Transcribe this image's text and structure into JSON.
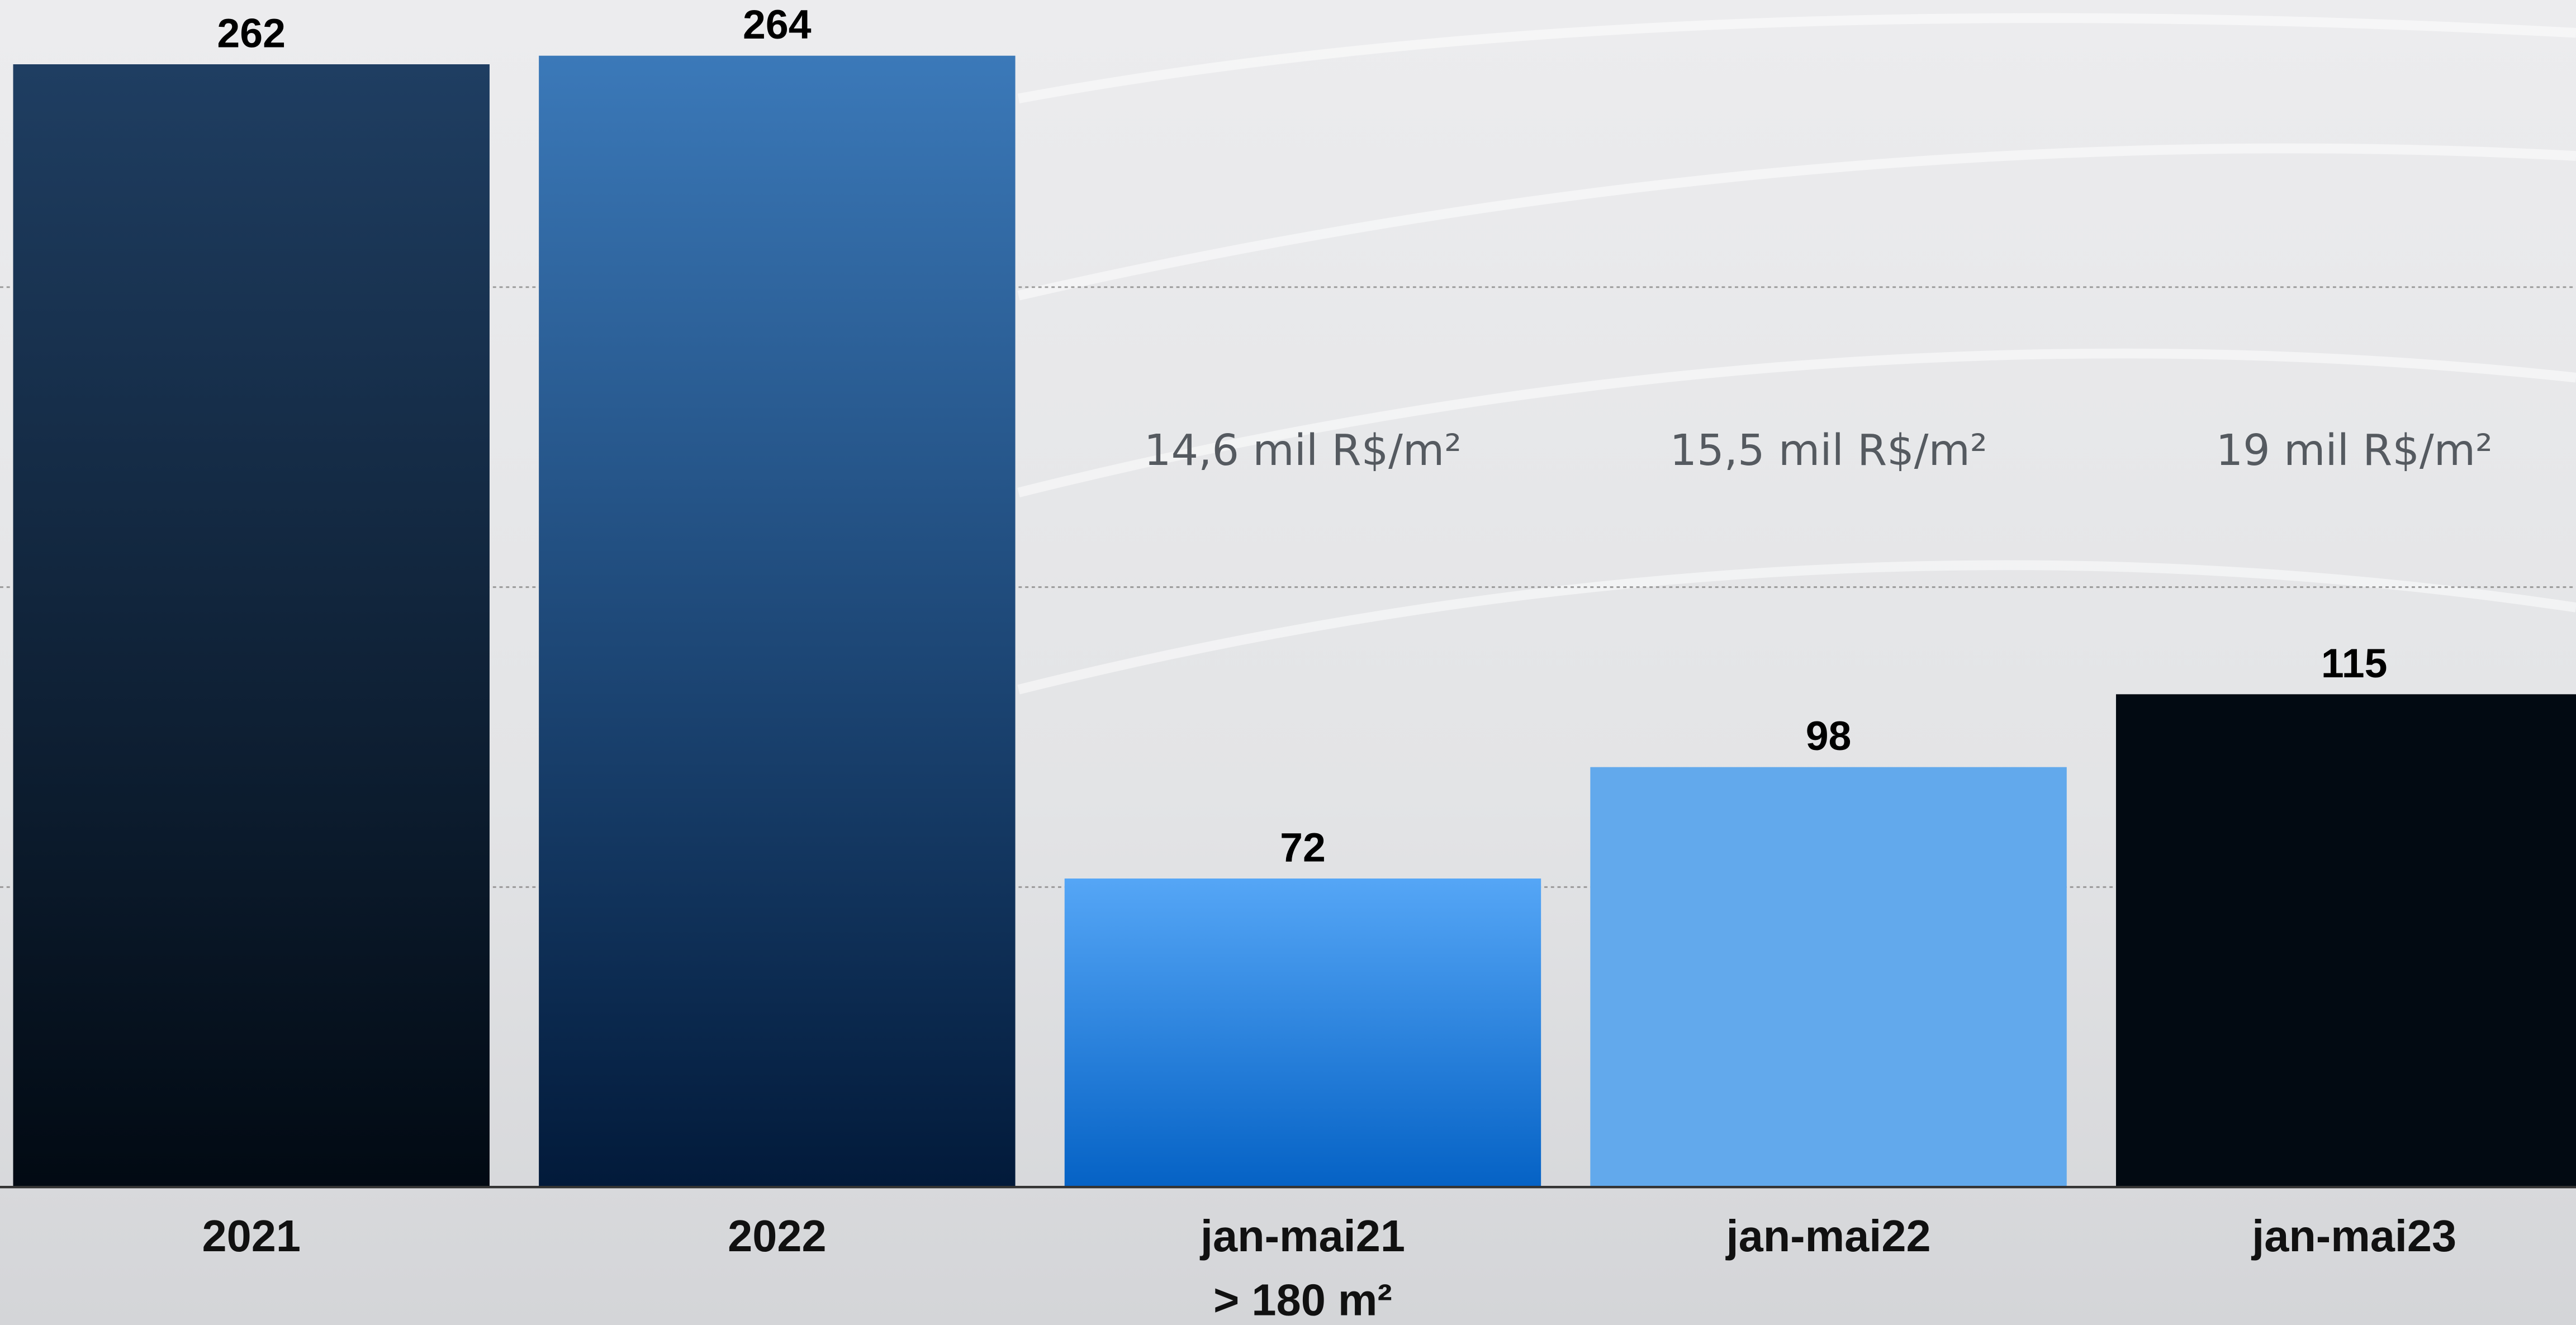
{
  "chart_data": {
    "type": "bar",
    "categories": [
      "2021",
      "2022",
      "jan-mai21",
      "jan-mai22",
      "jan-mai23"
    ],
    "values": [
      262,
      264,
      72,
      98,
      115
    ],
    "colors": [
      [
        "#1f3e62",
        "#020a13"
      ],
      [
        "#3b79b9",
        "#021a3a"
      ],
      [
        "#55a6f6",
        "#0562c5"
      ],
      [
        "#62a9ec",
        "#62a9ec"
      ],
      [
        "#020a12",
        "#020a12"
      ]
    ],
    "x_note": "> 180 m²",
    "annotations": [
      "14,6 mil R$/m²",
      "15,5 mil R$/m²",
      "19 mil R$/m²"
    ],
    "ylim": [
      0,
      277
    ],
    "yticks": [
      70,
      140,
      210
    ],
    "grid": true
  }
}
